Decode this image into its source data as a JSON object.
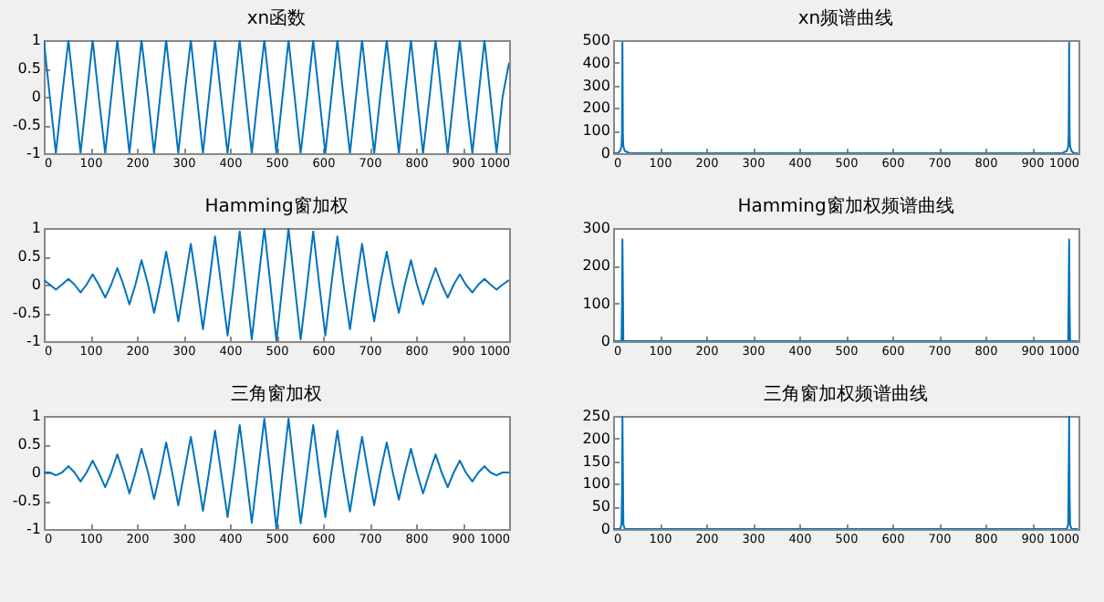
{
  "chart_data": [
    {
      "type": "line",
      "title": "xn函数",
      "x": [
        0,
        13,
        26,
        39,
        53,
        66,
        79,
        92,
        105,
        118,
        132,
        145,
        158,
        171,
        184,
        197,
        210,
        224,
        237,
        250,
        263,
        276,
        289,
        302,
        316,
        329,
        342,
        355,
        368,
        381,
        395,
        408,
        421,
        434,
        447,
        460,
        474,
        487,
        500,
        513,
        526,
        539,
        552,
        566,
        579,
        592,
        605,
        618,
        631,
        644,
        658,
        671,
        684,
        697,
        710,
        723,
        737,
        750,
        763,
        776,
        789,
        802,
        815,
        829,
        842,
        855,
        868,
        881,
        894,
        907,
        921,
        934,
        947,
        960,
        973,
        986,
        1000
      ],
      "series": [
        {
          "color": "#0072bd",
          "values": [
            1,
            0,
            -1,
            0,
            1,
            0,
            -1,
            0,
            1,
            0,
            -1,
            0,
            1,
            0,
            -1,
            0,
            1,
            0,
            -1,
            0,
            1,
            0,
            -1,
            0,
            1,
            0,
            -1,
            0,
            1,
            0,
            -1,
            0,
            1,
            0,
            -1,
            0,
            1,
            0,
            -1,
            0,
            1,
            0,
            -1,
            0,
            1,
            0,
            -1,
            0,
            1,
            0,
            -1,
            0,
            1,
            0,
            -1,
            0,
            1,
            0,
            -1,
            0,
            1,
            0,
            -1,
            0,
            1,
            0,
            -1,
            0,
            1,
            0,
            -1,
            0,
            1,
            0,
            -1,
            0,
            0.6
          ]
        }
      ],
      "xlim": [
        0,
        1000
      ],
      "xticks": [
        0,
        100,
        200,
        300,
        400,
        500,
        600,
        700,
        800,
        900,
        1000
      ],
      "ylim": [
        -1,
        1
      ],
      "yticks": [
        -1,
        -0.5,
        0,
        0.5,
        1
      ],
      "grid": false
    },
    {
      "type": "line",
      "title": "xn频谱曲线",
      "x": [
        0,
        10,
        15,
        18,
        19,
        20,
        21,
        22,
        25,
        35,
        100,
        200,
        300,
        400,
        500,
        600,
        700,
        800,
        900,
        965,
        975,
        978,
        979,
        980,
        981,
        982,
        985,
        990,
        999
      ],
      "series": [
        {
          "color": "#0072bd",
          "values": [
            0,
            0,
            10,
            30,
            80,
            490,
            80,
            30,
            10,
            0,
            0,
            0,
            0,
            0,
            0,
            0,
            0,
            0,
            0,
            0,
            10,
            30,
            80,
            490,
            80,
            30,
            10,
            0,
            0
          ]
        }
      ],
      "xlim": [
        0,
        1000
      ],
      "xticks": [
        0,
        100,
        200,
        300,
        400,
        500,
        600,
        700,
        800,
        900,
        1000
      ],
      "ylim": [
        0,
        500
      ],
      "yticks": [
        0,
        100,
        200,
        300,
        400,
        500
      ],
      "grid": false
    },
    {
      "type": "line",
      "title": "Hamming窗加权",
      "x": [
        0,
        13,
        26,
        39,
        53,
        66,
        79,
        92,
        105,
        118,
        132,
        145,
        158,
        171,
        184,
        197,
        210,
        224,
        237,
        250,
        263,
        276,
        289,
        302,
        316,
        329,
        342,
        355,
        368,
        381,
        395,
        408,
        421,
        434,
        447,
        460,
        474,
        487,
        500,
        513,
        526,
        539,
        552,
        566,
        579,
        592,
        605,
        618,
        631,
        644,
        658,
        671,
        684,
        697,
        710,
        723,
        737,
        750,
        763,
        776,
        789,
        802,
        815,
        829,
        842,
        855,
        868,
        881,
        894,
        907,
        921,
        934,
        947,
        960,
        973,
        986,
        1000
      ],
      "series": [
        {
          "color": "#0072bd",
          "values": [
            0.08,
            0,
            -0.09,
            0,
            0.1,
            0,
            -0.14,
            0,
            0.18,
            0,
            -0.23,
            0,
            0.29,
            0,
            -0.35,
            0,
            0.43,
            0,
            -0.5,
            0,
            0.58,
            0,
            -0.65,
            0,
            0.72,
            0,
            -0.79,
            0,
            0.85,
            0,
            -0.9,
            0,
            0.94,
            0,
            -0.97,
            0,
            0.99,
            0,
            -1,
            0,
            0.99,
            0,
            -0.97,
            0,
            0.94,
            0,
            -0.9,
            0,
            0.85,
            0,
            -0.79,
            0,
            0.72,
            0,
            -0.65,
            0,
            0.58,
            0,
            -0.5,
            0,
            0.43,
            0,
            -0.35,
            0,
            0.29,
            0,
            -0.23,
            0,
            0.18,
            0,
            -0.14,
            0,
            0.1,
            0,
            -0.09,
            0,
            0.08
          ]
        }
      ],
      "xlim": [
        0,
        1000
      ],
      "xticks": [
        0,
        100,
        200,
        300,
        400,
        500,
        600,
        700,
        800,
        900,
        1000
      ],
      "ylim": [
        -1,
        1
      ],
      "yticks": [
        -1,
        -0.5,
        0,
        0.5,
        1
      ],
      "grid": false
    },
    {
      "type": "line",
      "title": "Hamming窗加权频谱曲线",
      "x": [
        0,
        10,
        15,
        18,
        19,
        20,
        21,
        22,
        25,
        35,
        100,
        200,
        300,
        400,
        500,
        600,
        700,
        800,
        900,
        965,
        975,
        978,
        979,
        980,
        981,
        982,
        985,
        990,
        999
      ],
      "series": [
        {
          "color": "#0072bd",
          "values": [
            0,
            0,
            0,
            0,
            90,
            270,
            140,
            0,
            0,
            0,
            0,
            0,
            0,
            0,
            0,
            0,
            0,
            0,
            0,
            0,
            0,
            0,
            140,
            270,
            90,
            0,
            0,
            0,
            0
          ]
        }
      ],
      "xlim": [
        0,
        1000
      ],
      "xticks": [
        0,
        100,
        200,
        300,
        400,
        500,
        600,
        700,
        800,
        900,
        1000
      ],
      "ylim": [
        0,
        300
      ],
      "yticks": [
        0,
        100,
        200,
        300
      ],
      "grid": false
    },
    {
      "type": "line",
      "title": "三角窗加权",
      "x": [
        0,
        13,
        26,
        39,
        53,
        66,
        79,
        92,
        105,
        118,
        132,
        145,
        158,
        171,
        184,
        197,
        210,
        224,
        237,
        250,
        263,
        276,
        289,
        302,
        316,
        329,
        342,
        355,
        368,
        381,
        395,
        408,
        421,
        434,
        447,
        460,
        474,
        487,
        500,
        513,
        526,
        539,
        552,
        566,
        579,
        592,
        605,
        618,
        631,
        644,
        658,
        671,
        684,
        697,
        710,
        723,
        737,
        750,
        763,
        776,
        789,
        802,
        815,
        829,
        842,
        855,
        868,
        881,
        894,
        907,
        921,
        934,
        947,
        960,
        973,
        986,
        1000
      ],
      "series": [
        {
          "color": "#0072bd",
          "values": [
            0,
            0,
            -0.05,
            0,
            0.11,
            0,
            -0.16,
            0,
            0.21,
            0,
            -0.26,
            0,
            0.32,
            0,
            -0.37,
            0,
            0.42,
            0,
            -0.47,
            0,
            0.53,
            0,
            -0.58,
            0,
            0.63,
            0,
            -0.68,
            0,
            0.74,
            0,
            -0.79,
            0,
            0.84,
            0,
            -0.89,
            0,
            0.95,
            0,
            -1,
            0,
            0.95,
            0,
            -0.9,
            0,
            0.84,
            0,
            -0.79,
            0,
            0.74,
            0,
            -0.69,
            0,
            0.63,
            0,
            -0.58,
            0,
            0.53,
            0,
            -0.48,
            0,
            0.42,
            0,
            -0.37,
            0,
            0.32,
            0,
            -0.26,
            0,
            0.21,
            0,
            -0.16,
            0,
            0.11,
            0,
            -0.05,
            0,
            0
          ]
        }
      ],
      "xlim": [
        0,
        1000
      ],
      "xticks": [
        0,
        100,
        200,
        300,
        400,
        500,
        600,
        700,
        800,
        900,
        1000
      ],
      "ylim": [
        -1,
        1
      ],
      "yticks": [
        -1,
        -0.5,
        0,
        0.5,
        1
      ],
      "grid": false
    },
    {
      "type": "line",
      "title": "三角窗加权频谱曲线",
      "x": [
        0,
        10,
        15,
        18,
        19,
        20,
        21,
        22,
        25,
        35,
        100,
        200,
        300,
        400,
        500,
        600,
        700,
        800,
        900,
        965,
        975,
        978,
        979,
        980,
        981,
        982,
        985,
        990,
        999
      ],
      "series": [
        {
          "color": "#0072bd",
          "values": [
            0,
            0,
            0,
            10,
            75,
            250,
            130,
            10,
            0,
            0,
            0,
            0,
            0,
            0,
            0,
            0,
            0,
            0,
            0,
            0,
            0,
            10,
            130,
            250,
            75,
            10,
            0,
            0,
            0
          ]
        }
      ],
      "xlim": [
        0,
        1000
      ],
      "xticks": [
        0,
        100,
        200,
        300,
        400,
        500,
        600,
        700,
        800,
        900,
        1000
      ],
      "ylim": [
        0,
        250
      ],
      "yticks": [
        0,
        50,
        100,
        150,
        200,
        250
      ],
      "grid": false
    }
  ]
}
